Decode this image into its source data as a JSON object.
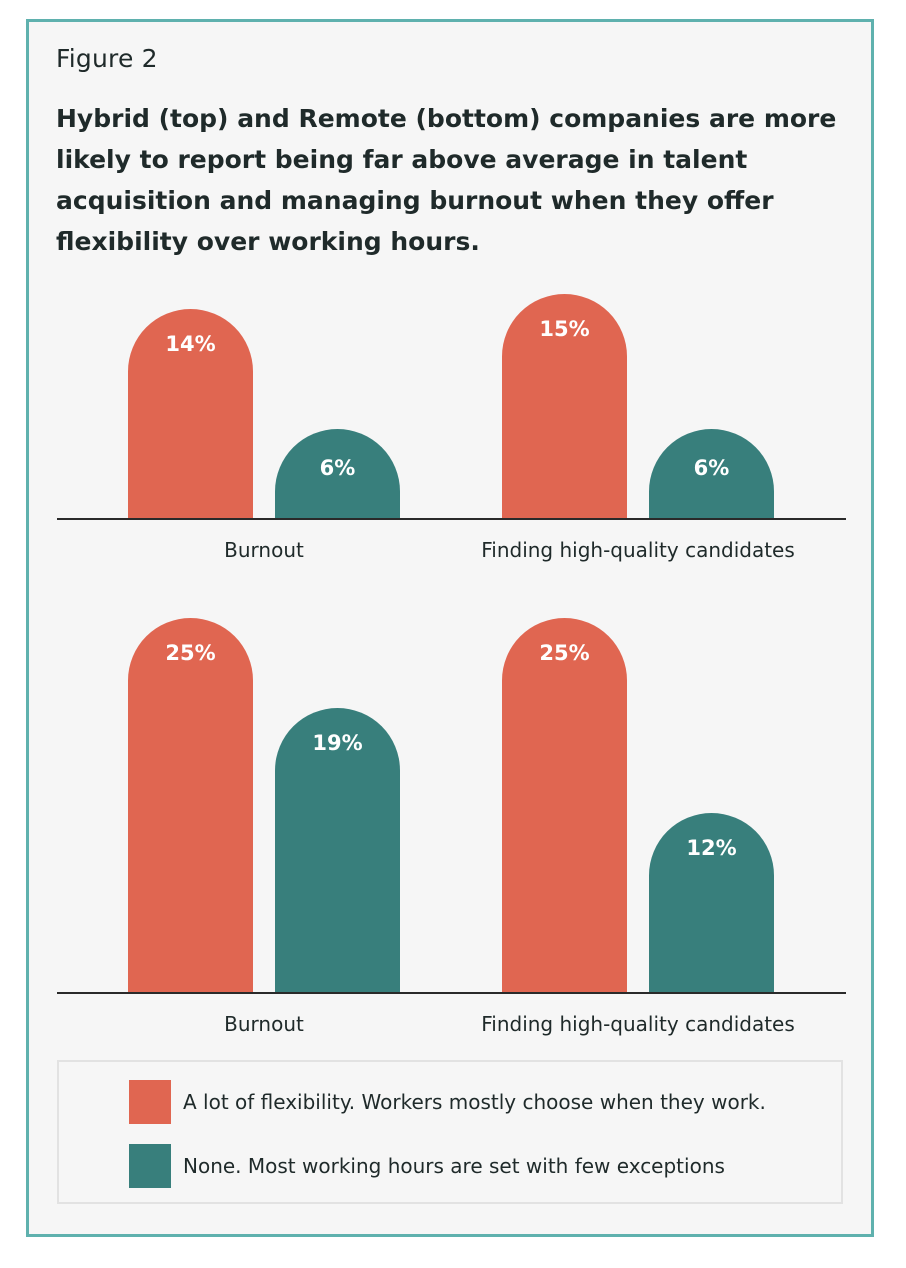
{
  "figure_label": "Figure 2",
  "title": "Hybrid (top) and Remote (bottom) companies are more likely to report being far above average in talent acquisition and managing burnout when they offer flexibility over working hours.",
  "colors": {
    "flexible": "#e06651",
    "none": "#387f7c",
    "frame": "#5fb1ae",
    "background": "#f6f6f6"
  },
  "chart_data": [
    {
      "type": "bar",
      "categories": [
        "Burnout",
        "Finding high-quality candidates"
      ],
      "series": [
        {
          "name": "A lot of flexibility. Workers mostly choose when they work.",
          "values": [
            14,
            15
          ],
          "labels": [
            "14%",
            "15%"
          ]
        },
        {
          "name": "None. Most working hours are set with few exceptions",
          "values": [
            6,
            6
          ],
          "labels": [
            "6%",
            "6%"
          ]
        }
      ],
      "unit": "%"
    },
    {
      "type": "bar",
      "categories": [
        "Burnout",
        "Finding high-quality candidates"
      ],
      "series": [
        {
          "name": "A lot of flexibility. Workers mostly choose when they work.",
          "values": [
            25,
            25
          ],
          "labels": [
            "25%",
            "25%"
          ]
        },
        {
          "name": "None. Most working hours are set with few exceptions",
          "values": [
            19,
            12
          ],
          "labels": [
            "19%",
            "12%"
          ]
        }
      ],
      "unit": "%"
    }
  ],
  "legend": [
    {
      "label": "A lot of flexibility. Workers mostly choose when they work.",
      "color": "#e06651"
    },
    {
      "label": "None. Most working hours are set with few exceptions",
      "color": "#387f7c"
    }
  ]
}
